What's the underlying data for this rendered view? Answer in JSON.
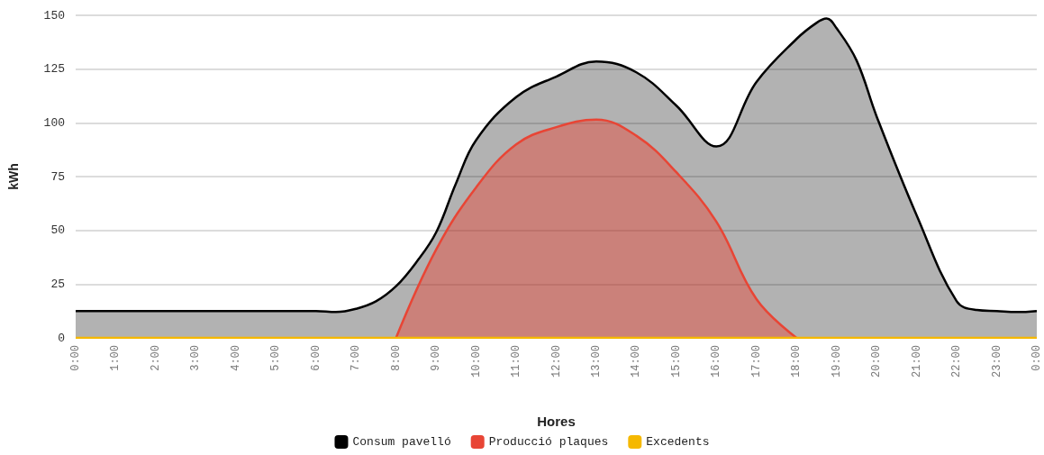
{
  "chart_data": {
    "type": "area",
    "xlabel": "Hores",
    "ylabel": "kWh",
    "xlim": [
      0,
      24
    ],
    "ylim": [
      0,
      150
    ],
    "yticks": [
      0,
      25,
      50,
      75,
      100,
      125,
      150
    ],
    "xticks": [
      {
        "value": 0,
        "label": "0:00"
      },
      {
        "value": 1,
        "label": "1:00"
      },
      {
        "value": 2,
        "label": "2:00"
      },
      {
        "value": 3,
        "label": "3:00"
      },
      {
        "value": 4,
        "label": "4:00"
      },
      {
        "value": 5,
        "label": "5:00"
      },
      {
        "value": 6,
        "label": "6:00"
      },
      {
        "value": 7,
        "label": "7:00"
      },
      {
        "value": 8,
        "label": "8:00"
      },
      {
        "value": 9,
        "label": "9:00"
      },
      {
        "value": 10,
        "label": "10:00"
      },
      {
        "value": 11,
        "label": "11:00"
      },
      {
        "value": 12,
        "label": "12:00"
      },
      {
        "value": 13,
        "label": "13:00"
      },
      {
        "value": 14,
        "label": "14:00"
      },
      {
        "value": 15,
        "label": "15:00"
      },
      {
        "value": 16,
        "label": "16:00"
      },
      {
        "value": 17,
        "label": "17:00"
      },
      {
        "value": 18,
        "label": "18:00"
      },
      {
        "value": 19,
        "label": "19:00"
      },
      {
        "value": 20,
        "label": "20:00"
      },
      {
        "value": 21,
        "label": "21:00"
      },
      {
        "value": 22,
        "label": "22:00"
      },
      {
        "value": 23,
        "label": "23:00"
      },
      {
        "value": 24,
        "label": "0:00"
      }
    ],
    "grid": "y",
    "legend": "bottom",
    "marker": "none",
    "series": [
      {
        "name": "Consum pavelló",
        "color": "#000000",
        "x": [
          0,
          6,
          6.5,
          7,
          7.5,
          8,
          8.5,
          9,
          9.5,
          10,
          11,
          12,
          13,
          14,
          15,
          16,
          17,
          18,
          18.5,
          18.75,
          19,
          19.5,
          20,
          21,
          22,
          22.5,
          23,
          23.5,
          24
        ],
        "values": [
          12.5,
          12.5,
          12,
          13.5,
          17,
          24,
          35,
          49,
          72,
          92,
          112,
          121.5,
          128.5,
          123.5,
          108,
          89,
          119,
          139,
          146.5,
          148.5,
          144,
          129,
          103,
          57,
          17,
          13,
          12.5,
          12,
          12.5
        ]
      },
      {
        "name": "Producció plaques",
        "color": "#e84535",
        "x": [
          8,
          9,
          10,
          11,
          12,
          13,
          14,
          15,
          16,
          17,
          18
        ],
        "values": [
          0,
          41,
          70,
          90,
          98,
          101.5,
          94,
          77,
          54,
          18,
          0
        ]
      },
      {
        "name": "Excedents",
        "color": "#f5b800",
        "type": "line",
        "x": [
          0,
          24
        ],
        "values": [
          0,
          0
        ]
      }
    ]
  }
}
